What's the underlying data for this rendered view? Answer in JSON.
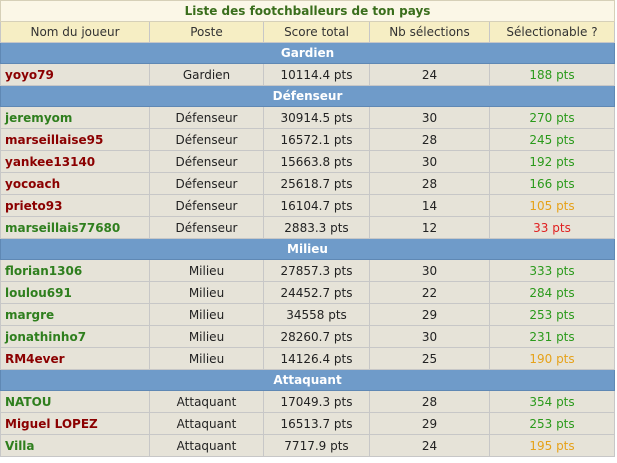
{
  "title": "Liste des footchballeurs de ton pays",
  "columns": [
    "Nom du joueur",
    "Poste",
    "Score total",
    "Nb sélections",
    "Sélectionable ?"
  ],
  "colors": {
    "name_red": "#8b0000",
    "name_green": "#2f7f1e",
    "sel_green": "#2a9a1b",
    "sel_orange": "#e6a21a",
    "sel_red": "#e02020",
    "section_bg": "#6f9bc9"
  },
  "sections": [
    {
      "label": "Gardien",
      "players": [
        {
          "name": "yoyo79",
          "poste": "Gardien",
          "score": "10114.4 pts",
          "selections": "24",
          "selectionable": "188 pts",
          "name_color": "red",
          "sel_color": "green"
        }
      ]
    },
    {
      "label": "Défenseur",
      "players": [
        {
          "name": "jeremyom",
          "poste": "Défenseur",
          "score": "30914.5 pts",
          "selections": "30",
          "selectionable": "270 pts",
          "name_color": "green",
          "sel_color": "green"
        },
        {
          "name": "marseillaise95",
          "poste": "Défenseur",
          "score": "16572.1 pts",
          "selections": "28",
          "selectionable": "245 pts",
          "name_color": "red",
          "sel_color": "green"
        },
        {
          "name": "yankee13140",
          "poste": "Défenseur",
          "score": "15663.8 pts",
          "selections": "30",
          "selectionable": "192 pts",
          "name_color": "red",
          "sel_color": "green"
        },
        {
          "name": "yocoach",
          "poste": "Défenseur",
          "score": "25618.7 pts",
          "selections": "28",
          "selectionable": "166 pts",
          "name_color": "red",
          "sel_color": "green"
        },
        {
          "name": "prieto93",
          "poste": "Défenseur",
          "score": "16104.7 pts",
          "selections": "14",
          "selectionable": "105 pts",
          "name_color": "red",
          "sel_color": "orange"
        },
        {
          "name": "marseillais77680",
          "poste": "Défenseur",
          "score": "2883.3 pts",
          "selections": "12",
          "selectionable": "33 pts",
          "name_color": "green",
          "sel_color": "red"
        }
      ]
    },
    {
      "label": "Milieu",
      "players": [
        {
          "name": "florian1306",
          "poste": "Milieu",
          "score": "27857.3 pts",
          "selections": "30",
          "selectionable": "333 pts",
          "name_color": "green",
          "sel_color": "green"
        },
        {
          "name": "loulou691",
          "poste": "Milieu",
          "score": "24452.7 pts",
          "selections": "22",
          "selectionable": "284 pts",
          "name_color": "green",
          "sel_color": "green"
        },
        {
          "name": "margre",
          "poste": "Milieu",
          "score": "34558 pts",
          "selections": "29",
          "selectionable": "253 pts",
          "name_color": "green",
          "sel_color": "green"
        },
        {
          "name": "jonathinho7",
          "poste": "Milieu",
          "score": "28260.7 pts",
          "selections": "30",
          "selectionable": "231 pts",
          "name_color": "green",
          "sel_color": "green"
        },
        {
          "name": "RM4ever",
          "poste": "Milieu",
          "score": "14126.4 pts",
          "selections": "25",
          "selectionable": "190 pts",
          "name_color": "red",
          "sel_color": "orange"
        }
      ]
    },
    {
      "label": "Attaquant",
      "players": [
        {
          "name": "NATOU",
          "poste": "Attaquant",
          "score": "17049.3 pts",
          "selections": "28",
          "selectionable": "354 pts",
          "name_color": "green",
          "sel_color": "green"
        },
        {
          "name": "Miguel LOPEZ",
          "poste": "Attaquant",
          "score": "16513.7 pts",
          "selections": "29",
          "selectionable": "253 pts",
          "name_color": "red",
          "sel_color": "green"
        },
        {
          "name": "Villa",
          "poste": "Attaquant",
          "score": "7717.9 pts",
          "selections": "24",
          "selectionable": "195 pts",
          "name_color": "green",
          "sel_color": "orange"
        }
      ]
    }
  ]
}
